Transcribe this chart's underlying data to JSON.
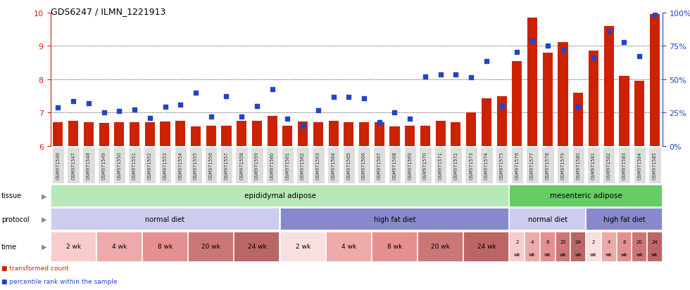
{
  "title": "GDS6247 / ILMN_1221913",
  "samples": [
    "GSM971546",
    "GSM971547",
    "GSM971548",
    "GSM971549",
    "GSM971550",
    "GSM971551",
    "GSM971552",
    "GSM971553",
    "GSM971554",
    "GSM971555",
    "GSM971556",
    "GSM971557",
    "GSM971558",
    "GSM971559",
    "GSM971560",
    "GSM971561",
    "GSM971562",
    "GSM971563",
    "GSM971564",
    "GSM971565",
    "GSM971566",
    "GSM971567",
    "GSM971568",
    "GSM971569",
    "GSM971570",
    "GSM971571",
    "GSM971572",
    "GSM971573",
    "GSM971574",
    "GSM971575",
    "GSM971576",
    "GSM971577",
    "GSM971578",
    "GSM971579",
    "GSM971580",
    "GSM971581",
    "GSM971582",
    "GSM971583",
    "GSM971584",
    "GSM971585"
  ],
  "bar_values": [
    6.72,
    6.75,
    6.72,
    6.7,
    6.72,
    6.72,
    6.72,
    6.73,
    6.75,
    6.6,
    6.62,
    6.62,
    6.75,
    6.75,
    6.9,
    6.62,
    6.73,
    6.72,
    6.75,
    6.72,
    6.72,
    6.72,
    6.6,
    6.62,
    6.62,
    6.75,
    6.72,
    7.0,
    7.42,
    7.5,
    8.55,
    9.85,
    8.8,
    9.1,
    7.6,
    8.85,
    9.6,
    8.1,
    7.95,
    9.95
  ],
  "dot_values": [
    7.15,
    7.35,
    7.28,
    7.02,
    7.05,
    7.1,
    6.85,
    7.18,
    7.25,
    7.6,
    6.88,
    7.5,
    6.88,
    7.2,
    7.7,
    6.82,
    6.62,
    7.08,
    7.48,
    7.48,
    7.42,
    6.72,
    7.0,
    6.82,
    8.08,
    8.15,
    8.15,
    8.05,
    8.55,
    7.2,
    8.82,
    9.15,
    9.0,
    8.88,
    7.18,
    8.65,
    9.45,
    9.1,
    8.68,
    9.92
  ],
  "ylim_left": [
    6.0,
    10.0
  ],
  "yticks_left": [
    6,
    7,
    8,
    9,
    10
  ],
  "ylim_right": [
    0,
    100
  ],
  "yticks_right": [
    0,
    25,
    50,
    75,
    100
  ],
  "ytick_right_labels": [
    "0%",
    "25%",
    "50%",
    "75%",
    "100%"
  ],
  "bar_color": "#cc2200",
  "dot_color": "#2244cc",
  "bg_color": "#ffffff",
  "tissue_epididymal_label": "epididymal adipose",
  "tissue_mesenteric_label": "mesenteric adipose",
  "tissue_epididymal_color": "#b8e8b8",
  "tissue_mesenteric_color": "#66cc66",
  "protocol_groups": [
    {
      "label": "normal diet",
      "start": 0,
      "end": 15,
      "color": "#ccccee"
    },
    {
      "label": "high fat diet",
      "start": 15,
      "end": 30,
      "color": "#8888cc"
    },
    {
      "label": "normal diet",
      "start": 30,
      "end": 35,
      "color": "#ccccee"
    },
    {
      "label": "high fat diet",
      "start": 35,
      "end": 40,
      "color": "#8888cc"
    }
  ],
  "time_groups": [
    {
      "label": "2 wk",
      "start": 0,
      "end": 3,
      "color": "#f8cccc"
    },
    {
      "label": "4 wk",
      "start": 3,
      "end": 6,
      "color": "#eeaaaa"
    },
    {
      "label": "8 wk",
      "start": 6,
      "end": 9,
      "color": "#e49090"
    },
    {
      "label": "20 wk",
      "start": 9,
      "end": 12,
      "color": "#cc7777"
    },
    {
      "label": "24 wk",
      "start": 12,
      "end": 15,
      "color": "#bb6666"
    },
    {
      "label": "2 wk",
      "start": 15,
      "end": 18,
      "color": "#f8e0e0"
    },
    {
      "label": "4 wk",
      "start": 18,
      "end": 21,
      "color": "#eeaaaa"
    },
    {
      "label": "8 wk",
      "start": 21,
      "end": 24,
      "color": "#e49090"
    },
    {
      "label": "20 wk",
      "start": 24,
      "end": 27,
      "color": "#cc7777"
    },
    {
      "label": "24 wk",
      "start": 27,
      "end": 30,
      "color": "#bb6666"
    },
    {
      "label": "2 wk",
      "start": 30,
      "end": 31,
      "color": "#f8cccc"
    },
    {
      "label": "4 wk",
      "start": 31,
      "end": 32,
      "color": "#eeaaaa"
    },
    {
      "label": "8 wk",
      "start": 32,
      "end": 33,
      "color": "#e49090"
    },
    {
      "label": "20 wk",
      "start": 33,
      "end": 34,
      "color": "#cc7777"
    },
    {
      "label": "24 wk",
      "start": 34,
      "end": 35,
      "color": "#bb6666"
    },
    {
      "label": "2 wk",
      "start": 35,
      "end": 36,
      "color": "#f8e0e0"
    },
    {
      "label": "4 wk",
      "start": 36,
      "end": 37,
      "color": "#eeaaaa"
    },
    {
      "label": "8 wk",
      "start": 37,
      "end": 38,
      "color": "#e49090"
    },
    {
      "label": "20 wk",
      "start": 38,
      "end": 39,
      "color": "#cc7777"
    },
    {
      "label": "24 wk",
      "start": 39,
      "end": 40,
      "color": "#bb6666"
    }
  ],
  "legend_items": [
    {
      "label": "transformed count",
      "color": "#cc2200"
    },
    {
      "label": "percentile rank within the sample",
      "color": "#2244cc"
    }
  ],
  "left_axis_color": "#cc2200",
  "right_axis_color": "#2244cc",
  "xticklabel_bg": "#dddddd",
  "xticklabel_color": "#333333"
}
